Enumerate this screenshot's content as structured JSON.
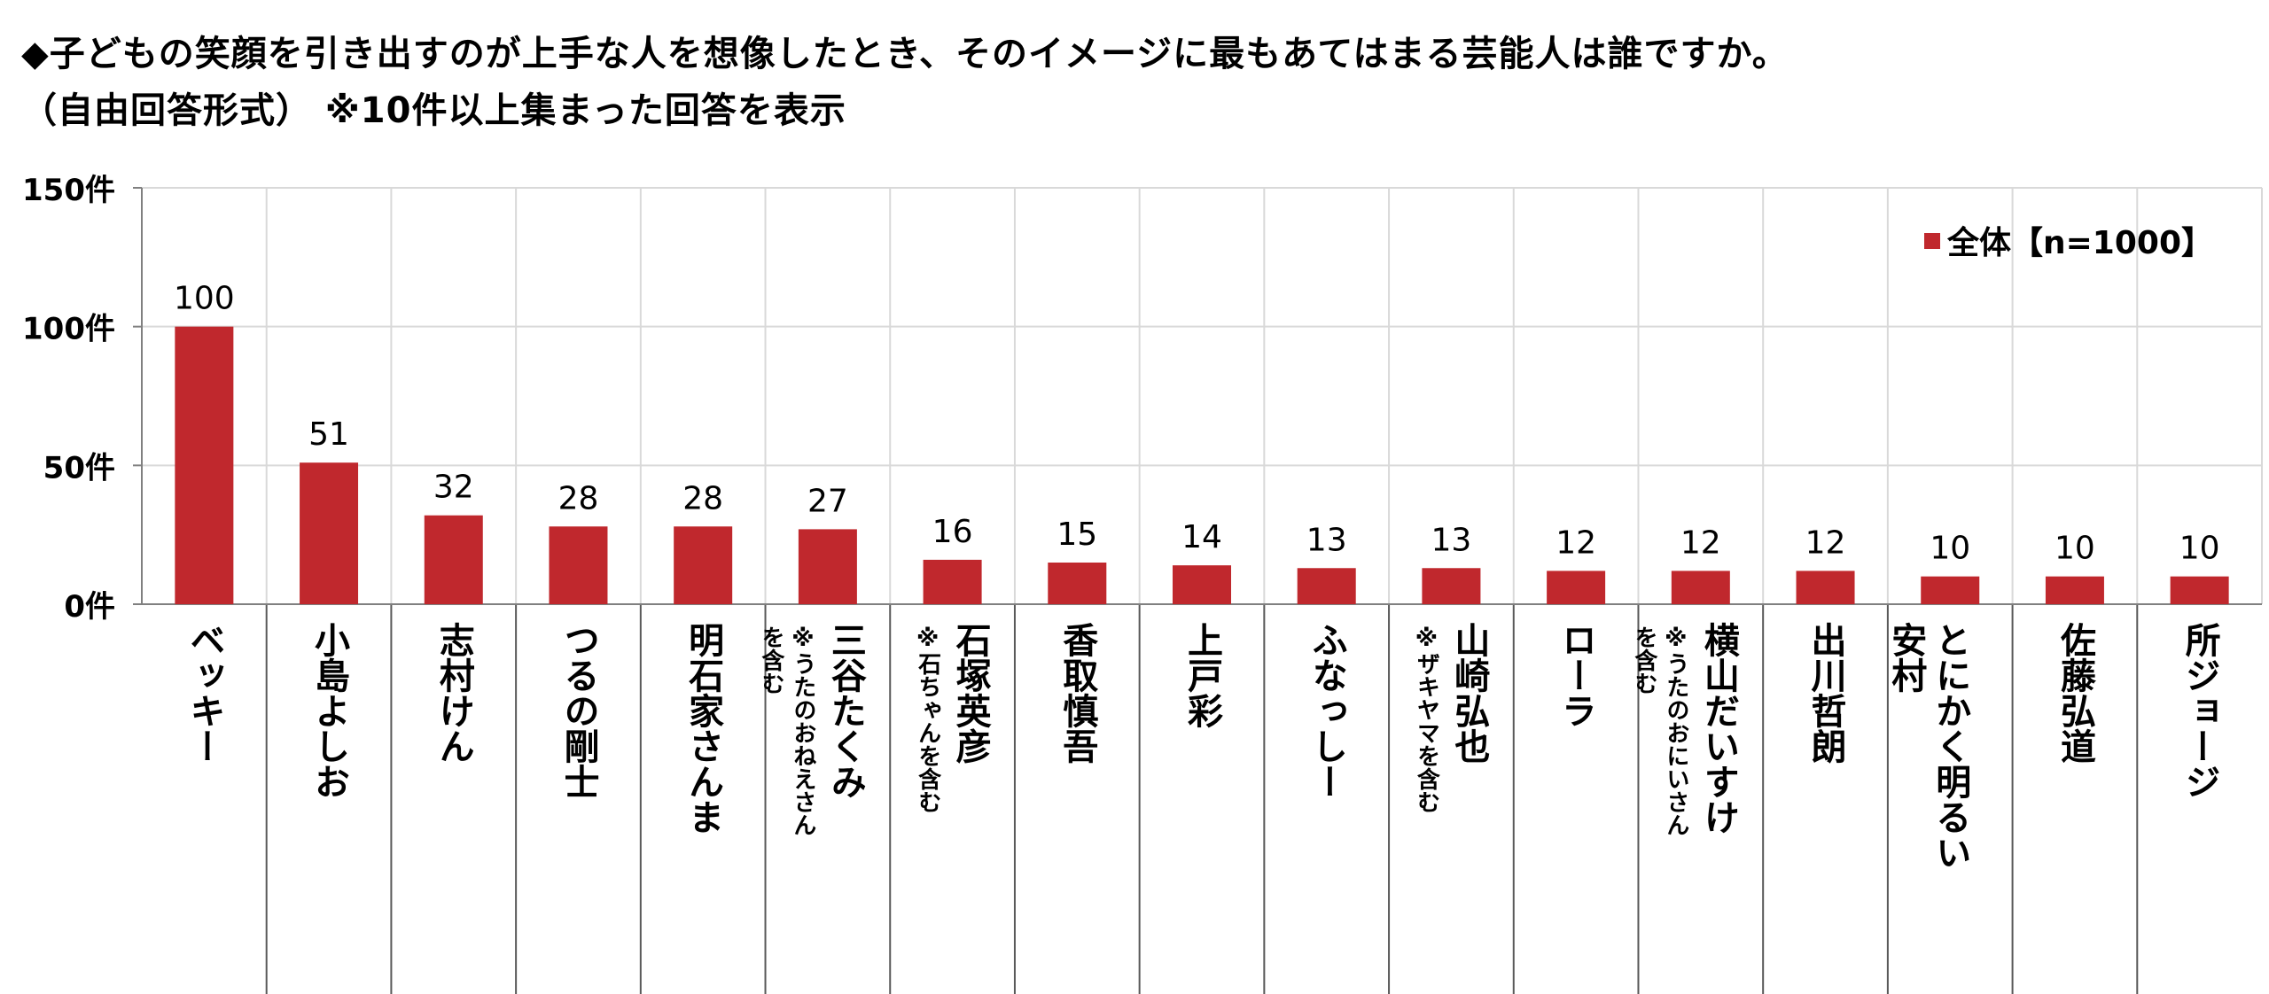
{
  "title_line1": "◆子どもの笑顔を引き出すのが上手な人を想像したとき、そのイメージに最もあてはまる芸能人は誰ですか。",
  "title_line2": "（自由回答形式） ※10件以上集まった回答を表示",
  "colors": {
    "bar": "#c0282d",
    "grid": "#d9d9d9",
    "axis": "#808080"
  },
  "chart_data": {
    "type": "bar",
    "categories": [
      "ベッキー",
      "小島よしお",
      "志村けん",
      "つるの剛士",
      "明石家さんま",
      "三谷たくみ",
      "石塚英彦",
      "香取慎吾",
      "上戸彩",
      "ふなっしー",
      "山崎弘也",
      "ローラ",
      "横山だいすけ",
      "出川哲朗",
      "とにかく明るい安村",
      "佐藤弘道",
      "所ジョージ"
    ],
    "category_lines": [
      [
        "ベッキー"
      ],
      [
        "小島よしお"
      ],
      [
        "志村けん"
      ],
      [
        "つるの剛士"
      ],
      [
        "明石家さんま"
      ],
      [
        "三谷たくみ"
      ],
      [
        "石塚英彦"
      ],
      [
        "香取慎吾"
      ],
      [
        "上戸彩"
      ],
      [
        "ふなっしー"
      ],
      [
        "山崎弘也"
      ],
      [
        "ローラ"
      ],
      [
        "横山だいすけ"
      ],
      [
        "出川哲朗"
      ],
      [
        "とにかく明るい",
        "安村"
      ],
      [
        "佐藤弘道"
      ],
      [
        "所ジョージ"
      ]
    ],
    "category_notes": [
      "",
      "",
      "",
      "",
      "",
      "※うたのおねえさんを含む",
      "※石ちゃんを含む",
      "",
      "",
      "",
      "※ザキヤマを含む",
      "",
      "※うたのおにいさんを含む",
      "",
      "",
      "",
      ""
    ],
    "note_lines": [
      [],
      [],
      [],
      [],
      [],
      [
        "※うたのおねえさん",
        "を含む"
      ],
      [
        "※石ちゃんを含む"
      ],
      [],
      [],
      [],
      [
        "※ザキヤマを含む"
      ],
      [],
      [
        "※うたのおにいさん",
        "を含む"
      ],
      [],
      [],
      [],
      []
    ],
    "series": [
      {
        "name": "全体【n=1000】",
        "values": [
          100,
          51,
          32,
          28,
          28,
          27,
          16,
          15,
          14,
          13,
          13,
          12,
          12,
          12,
          10,
          10,
          10
        ]
      }
    ],
    "y_ticks": [
      "0件",
      "50件",
      "100件",
      "150件"
    ],
    "ylim": [
      0,
      150
    ],
    "grid": true,
    "legend_position": "top-right"
  }
}
